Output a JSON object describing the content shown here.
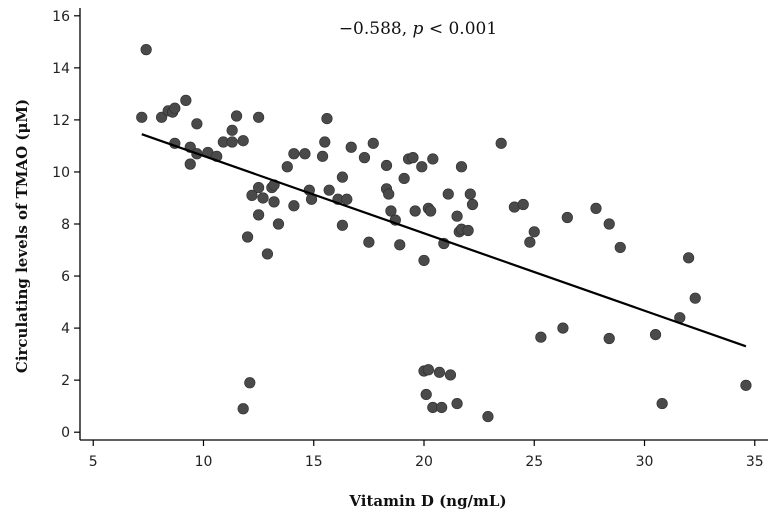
{
  "chart_data": {
    "type": "scatter",
    "title": "",
    "annotation": "−0.588, p < 0.001",
    "annotation_text": "−0.588, ",
    "annotation_p": "p",
    "annotation_rest": " < 0.001",
    "xlabel": "Vitamin D (ng/mL)",
    "ylabel": "Circulating levels of TMAO (μM)",
    "xlim": [
      4.4,
      35.6
    ],
    "ylim": [
      -0.3,
      16.3
    ],
    "xticks": [
      5,
      10,
      15,
      20,
      25,
      30,
      35
    ],
    "yticks": [
      0,
      2,
      4,
      6,
      8,
      10,
      12,
      14,
      16
    ],
    "grid": false,
    "trendline": {
      "x": [
        7.2,
        34.6
      ],
      "y": [
        11.45,
        3.3
      ]
    },
    "marker_color": "#4a4a4a",
    "line_color": "#000000",
    "points": [
      [
        7.4,
        14.7
      ],
      [
        7.2,
        12.1
      ],
      [
        8.1,
        12.1
      ],
      [
        8.4,
        12.35
      ],
      [
        8.6,
        12.3
      ],
      [
        8.7,
        12.45
      ],
      [
        9.2,
        12.75
      ],
      [
        8.7,
        11.1
      ],
      [
        9.4,
        10.95
      ],
      [
        9.7,
        11.85
      ],
      [
        9.7,
        10.7
      ],
      [
        9.4,
        10.3
      ],
      [
        10.2,
        10.75
      ],
      [
        10.6,
        10.6
      ],
      [
        10.9,
        11.15
      ],
      [
        11.3,
        11.15
      ],
      [
        11.3,
        11.6
      ],
      [
        11.5,
        12.15
      ],
      [
        11.8,
        11.2
      ],
      [
        12.5,
        12.1
      ],
      [
        12.2,
        9.1
      ],
      [
        12.5,
        9.4
      ],
      [
        12.7,
        9.0
      ],
      [
        12.5,
        8.35
      ],
      [
        12.0,
        7.5
      ],
      [
        12.9,
        6.85
      ],
      [
        13.1,
        9.4
      ],
      [
        13.2,
        9.5
      ],
      [
        13.2,
        8.85
      ],
      [
        13.4,
        8.0
      ],
      [
        13.8,
        10.2
      ],
      [
        14.1,
        10.7
      ],
      [
        14.1,
        8.7
      ],
      [
        14.6,
        10.7
      ],
      [
        14.8,
        9.3
      ],
      [
        14.9,
        8.95
      ],
      [
        15.4,
        10.6
      ],
      [
        15.5,
        11.15
      ],
      [
        15.6,
        12.05
      ],
      [
        15.7,
        9.3
      ],
      [
        16.1,
        8.95
      ],
      [
        16.3,
        9.8
      ],
      [
        16.3,
        7.95
      ],
      [
        16.5,
        8.95
      ],
      [
        16.7,
        10.95
      ],
      [
        17.3,
        10.55
      ],
      [
        17.5,
        7.3
      ],
      [
        17.7,
        11.1
      ],
      [
        18.3,
        10.25
      ],
      [
        18.3,
        9.35
      ],
      [
        18.4,
        9.15
      ],
      [
        18.5,
        8.5
      ],
      [
        18.7,
        8.15
      ],
      [
        18.9,
        7.2
      ],
      [
        19.1,
        9.75
      ],
      [
        19.3,
        10.5
      ],
      [
        19.5,
        10.55
      ],
      [
        19.6,
        8.5
      ],
      [
        19.9,
        10.2
      ],
      [
        20.2,
        8.6
      ],
      [
        20.3,
        8.5
      ],
      [
        20.4,
        10.5
      ],
      [
        20.0,
        6.6
      ],
      [
        20.9,
        7.25
      ],
      [
        21.1,
        9.15
      ],
      [
        21.5,
        8.3
      ],
      [
        21.6,
        7.7
      ],
      [
        21.7,
        7.8
      ],
      [
        21.7,
        10.2
      ],
      [
        22.0,
        7.75
      ],
      [
        22.1,
        9.15
      ],
      [
        22.2,
        8.75
      ],
      [
        23.5,
        11.1
      ],
      [
        24.1,
        8.65
      ],
      [
        24.5,
        8.75
      ],
      [
        24.8,
        7.3
      ],
      [
        25.0,
        7.7
      ],
      [
        25.3,
        3.65
      ],
      [
        26.5,
        8.25
      ],
      [
        26.3,
        4.0
      ],
      [
        27.8,
        8.6
      ],
      [
        28.4,
        8.0
      ],
      [
        28.4,
        3.6
      ],
      [
        28.9,
        7.1
      ],
      [
        30.5,
        3.75
      ],
      [
        30.8,
        1.1
      ],
      [
        31.6,
        4.4
      ],
      [
        32.0,
        6.7
      ],
      [
        32.3,
        5.15
      ],
      [
        34.6,
        1.8
      ],
      [
        11.8,
        0.9
      ],
      [
        12.1,
        1.9
      ],
      [
        20.0,
        2.35
      ],
      [
        20.2,
        2.4
      ],
      [
        20.7,
        2.3
      ],
      [
        21.2,
        2.2
      ],
      [
        20.1,
        1.45
      ],
      [
        20.4,
        0.95
      ],
      [
        20.8,
        0.95
      ],
      [
        21.5,
        1.1
      ],
      [
        22.9,
        0.6
      ]
    ]
  }
}
